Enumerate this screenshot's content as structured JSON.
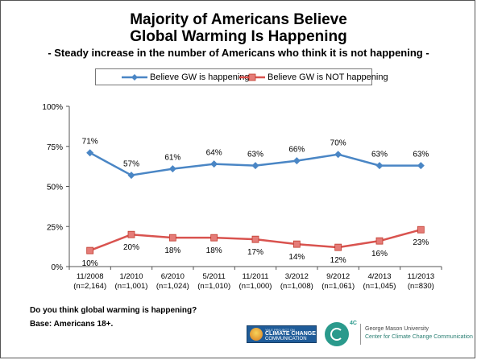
{
  "title_line1": "Majority of Americans Believe",
  "title_line2": "Global Warming Is Happening",
  "subtitle": "- Steady increase in the number of Americans who think it is not happening -",
  "question": "Do you think global warming is happening?",
  "base": "Base: Americans 18+.",
  "logos": {
    "ycc_small": "YALE PROJECT ON",
    "ycc_main": "CLIMATE CHANGE",
    "ycc_sub": "COMMUNICATION",
    "fourc_mark": "4C",
    "gmu_line1": "George Mason University",
    "gmu_line2": "Center for Climate Change Communication"
  },
  "chart_data": {
    "type": "line",
    "categories": [
      "11/2008",
      "1/2010",
      "6/2010",
      "5/2011",
      "11/2011",
      "3/2012",
      "9/2012",
      "4/2013",
      "11/2013"
    ],
    "category_sublabels": [
      "(n=2,164)",
      "(n=1,001)",
      "(n=1,024)",
      "(n=1,010)",
      "(n=1,000)",
      "(n=1,008)",
      "(n=1,061)",
      "(n=1,045)",
      "(n=830)"
    ],
    "ylim": [
      0,
      100
    ],
    "yticks": [
      0,
      25,
      50,
      75,
      100
    ],
    "ytick_labels": [
      "0%",
      "25%",
      "50%",
      "75%",
      "100%"
    ],
    "grid": false,
    "legend_position": "top",
    "series": [
      {
        "name": "Believe GW is happening",
        "color": "#4a86c5",
        "marker": "diamond",
        "values": [
          71,
          57,
          61,
          64,
          63,
          66,
          70,
          63,
          63
        ],
        "labels": [
          "71%",
          "57%",
          "61%",
          "64%",
          "63%",
          "66%",
          "70%",
          "63%",
          "63%"
        ],
        "label_position": "above"
      },
      {
        "name": "Believe GW is NOT happening",
        "color": "#d9534f",
        "marker": "square",
        "values": [
          10,
          20,
          18,
          18,
          17,
          14,
          12,
          16,
          23
        ],
        "labels": [
          "10%",
          "20%",
          "18%",
          "18%",
          "17%",
          "14%",
          "12%",
          "16%",
          "23%"
        ],
        "label_position": "below"
      }
    ]
  }
}
